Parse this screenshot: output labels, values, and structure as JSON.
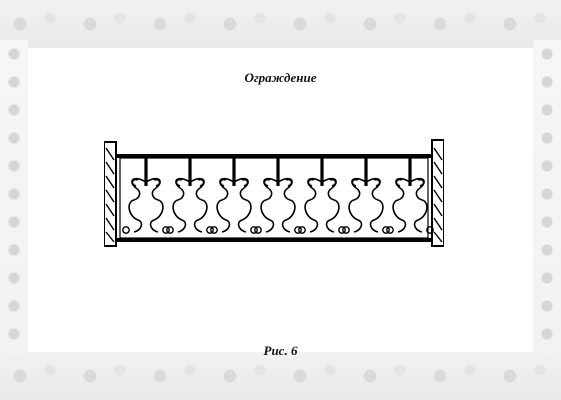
{
  "document": {
    "title": "Ограждение",
    "caption": "Рис. 6"
  }
}
